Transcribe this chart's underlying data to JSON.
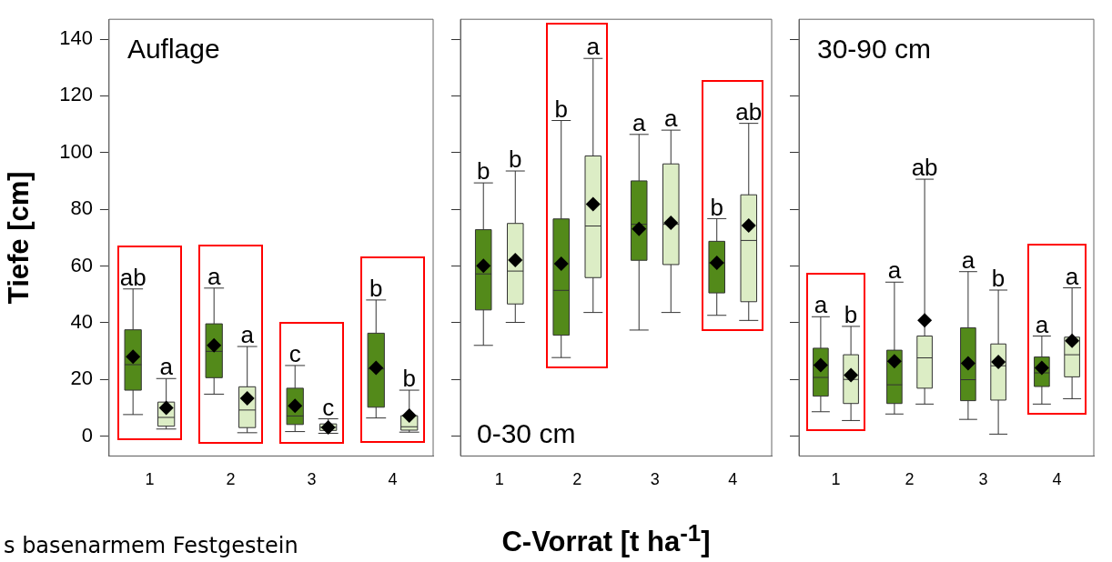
{
  "chart_data": [
    {
      "type": "box",
      "title": "Auflage",
      "ylabel": "Tiefe [cm]",
      "categories": [
        "1",
        "2",
        "3",
        "4"
      ],
      "ylim": [
        -7,
        147
      ],
      "yticks": [
        0,
        20,
        40,
        60,
        80,
        100,
        120,
        140
      ],
      "grid": false,
      "annotations": [
        "s basenarmem Festgestein"
      ],
      "series": [
        {
          "color": "#538a1a",
          "value_labels": [
            "ab",
            "a",
            "c",
            "b"
          ],
          "boxes": [
            {
              "low": 7.6,
              "q1": 16.2,
              "median": 25.2,
              "q3": 37.5,
              "high": 51.9,
              "mean": 28
            },
            {
              "low": 14.8,
              "q1": 20.6,
              "median": 29.9,
              "q3": 39.6,
              "high": 52.2,
              "mean": 32
            },
            {
              "low": 1.6,
              "q1": 4.1,
              "median": 7.1,
              "q3": 16.9,
              "high": 24.9,
              "mean": 10.7
            },
            {
              "low": 6.4,
              "q1": 10.2,
              "median": 23.7,
              "q3": 36.3,
              "high": 48,
              "mean": 24.1
            }
          ]
        },
        {
          "color": "#dcedc5",
          "value_labels": [
            "a",
            "a",
            "c",
            "b"
          ],
          "boxes": [
            {
              "low": 2.5,
              "q1": 3.5,
              "median": 6.6,
              "q3": 12,
              "high": 20.3,
              "mean": 10
            },
            {
              "low": 1.2,
              "q1": 3,
              "median": 9.2,
              "q3": 17.4,
              "high": 31.6,
              "mean": 13.3
            },
            {
              "low": 1,
              "q1": 2,
              "median": 3.1,
              "q3": 4.3,
              "high": 6.1,
              "mean": 3.1
            },
            {
              "low": 1.4,
              "q1": 2.1,
              "median": 3.3,
              "q3": 7.2,
              "high": 16.2,
              "mean": 7.2
            }
          ]
        }
      ]
    },
    {
      "type": "box",
      "title": "0-30 cm",
      "xlabel": "C-Vorrat [t ha$^{-1}$]",
      "categories": [
        "1",
        "2",
        "3",
        "4"
      ],
      "ylim": [
        -7,
        147
      ],
      "yticks": [
        0,
        20,
        40,
        60,
        80,
        100,
        120,
        140
      ],
      "tick_labels": "x",
      "grid": false,
      "series": [
        {
          "color": "#538a1a",
          "value_labels": [
            "b",
            "b",
            "a",
            "b"
          ],
          "boxes": [
            {
              "low": 32,
              "q1": 44.5,
              "median": 57.2,
              "q3": 72.8,
              "high": 89.3,
              "mean": 60.1
            },
            {
              "low": 27.7,
              "q1": 35.6,
              "median": 51.4,
              "q3": 76.6,
              "high": 111.3,
              "mean": 60.8
            },
            {
              "low": 37.4,
              "q1": 62,
              "median": 74.7,
              "q3": 90,
              "high": 106.4,
              "mean": 73.1
            },
            {
              "low": 42.6,
              "q1": 50.5,
              "median": 61.1,
              "q3": 68.7,
              "high": 76.7,
              "mean": 61.1
            }
          ]
        },
        {
          "color": "#dcedc5",
          "value_labels": [
            "b",
            "a",
            "a",
            "ab"
          ],
          "boxes": [
            {
              "low": 40.1,
              "q1": 46.6,
              "median": 58.2,
              "q3": 75,
              "high": 93.5,
              "mean": 62.1
            },
            {
              "low": 43.6,
              "q1": 55.9,
              "median": 74.1,
              "q3": 98.8,
              "high": 133.2,
              "mean": 81.8
            },
            {
              "low": 43.6,
              "q1": 60.5,
              "median": 74.7,
              "q3": 96,
              "high": 107.9,
              "mean": 75.2
            },
            {
              "low": 40.8,
              "q1": 47.4,
              "median": 69,
              "q3": 85.1,
              "high": 110.3,
              "mean": 74.3
            }
          ]
        }
      ]
    },
    {
      "type": "box",
      "title": "30-90 cm",
      "categories": [
        "1",
        "2",
        "3",
        "4"
      ],
      "ylim": [
        -7,
        147
      ],
      "yticks": [
        0,
        20,
        40,
        60,
        80,
        100,
        120,
        140
      ],
      "tick_labels": "x",
      "grid": false,
      "series": [
        {
          "color": "#538a1a",
          "value_labels": [
            "a",
            "a",
            "a",
            "a"
          ],
          "boxes": [
            {
              "low": 8.6,
              "q1": 14.1,
              "median": 20.7,
              "q3": 31,
              "high": 42.1,
              "mean": 25
            },
            {
              "low": 7.8,
              "q1": 11.5,
              "median": 18.1,
              "q3": 30.3,
              "high": 54.3,
              "mean": 26.4
            },
            {
              "low": 5.9,
              "q1": 12.5,
              "median": 19.9,
              "q3": 38.2,
              "high": 58,
              "mean": 25.7
            },
            {
              "low": 11.3,
              "q1": 17.5,
              "median": 22.3,
              "q3": 27.9,
              "high": 35.3,
              "mean": 24.1
            }
          ]
        },
        {
          "color": "#dcedc5",
          "value_labels": [
            "b",
            "ab",
            "b",
            "a"
          ],
          "boxes": [
            {
              "low": 5.5,
              "q1": 11.5,
              "median": 20,
              "q3": 28.7,
              "high": 38.7,
              "mean": 21.5
            },
            {
              "low": 11.3,
              "q1": 16.9,
              "median": 27.6,
              "q3": 35.3,
              "high": 90.6,
              "mean": 40.8
            },
            {
              "low": 0.7,
              "q1": 12.7,
              "median": 24.8,
              "q3": 32.5,
              "high": 51.5,
              "mean": 26.2
            },
            {
              "low": 13.2,
              "q1": 20.9,
              "median": 28.7,
              "q3": 34.9,
              "high": 52.3,
              "mean": 33.6
            }
          ]
        }
      ]
    }
  ]
}
